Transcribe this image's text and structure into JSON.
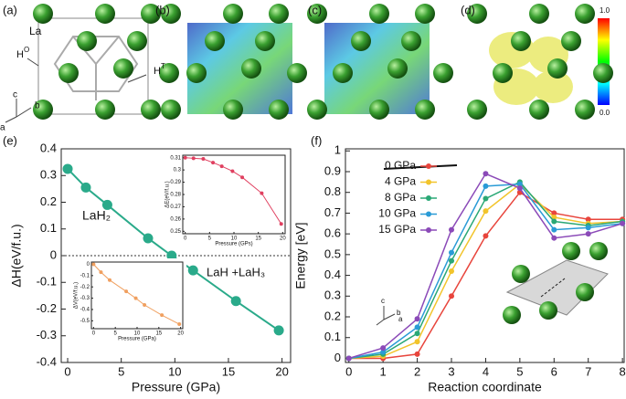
{
  "figure": {
    "panel_labels": [
      "(a)",
      "(b)",
      "(c)",
      "(d)",
      "(e)",
      "(f)"
    ],
    "structure_labels": {
      "la": "La",
      "ho": "H",
      "ho_sup": "O",
      "ht": "H",
      "ht_sup": "T",
      "axis_a": "a",
      "axis_b": "b",
      "axis_c": "c"
    },
    "colorbar": {
      "max": "1.0",
      "min": "0.0"
    },
    "f_axes": {
      "c": "c",
      "b": "b",
      "a": "a"
    }
  },
  "chart_data": [
    {
      "type": "line",
      "xlabel": "Pressure (GPa)",
      "ylabel": "ΔH(eV/f.u.)",
      "x": [
        0,
        1.7,
        3.7,
        7.5,
        9.7,
        11.7,
        15.7,
        19.7
      ],
      "series": [
        {
          "name": "ΔH",
          "color": "#2aaa8a",
          "values": [
            0.325,
            0.255,
            0.19,
            0.065,
            0,
            -0.055,
            -0.17,
            -0.28
          ]
        }
      ],
      "xlim": [
        -0.6,
        20.8
      ],
      "xticks": [
        0,
        5,
        10,
        15,
        20
      ],
      "ylim": [
        -0.4,
        0.4
      ],
      "yticks": [
        -0.4,
        -0.3,
        -0.2,
        -0.1,
        0,
        0.1,
        0.2,
        0.3,
        0.4
      ],
      "annotations": [
        "LaH₂",
        "LaH +LaH₃"
      ]
    },
    {
      "type": "line",
      "xlabel": "Pressure (GPs)",
      "ylabel": "ΔE(eV/f.u.)",
      "x": [
        0,
        1.7,
        3.7,
        5.7,
        7.5,
        9.7,
        11.7,
        15.7,
        19.7
      ],
      "series": [
        {
          "name": "ΔE",
          "color": "#e04060",
          "values": [
            0.31,
            0.3095,
            0.309,
            0.306,
            0.303,
            0.299,
            0.294,
            0.281,
            0.256
          ]
        }
      ],
      "xlim": [
        -0.5,
        20.5
      ],
      "xticks": [
        0,
        5,
        10,
        15,
        20
      ],
      "ylim": [
        0.248,
        0.312
      ],
      "yticks": [
        0.25,
        0.26,
        0.27,
        0.28,
        0.29,
        0.3,
        0.31
      ]
    },
    {
      "type": "line",
      "xlabel": "Pressure (GPa)",
      "ylabel": "ΔV(eV/f.u.)",
      "x": [
        0,
        1.7,
        3.7,
        7.5,
        9.7,
        11.7,
        15.7,
        19.7
      ],
      "series": [
        {
          "name": "ΔV",
          "color": "#f0a060",
          "values": [
            0,
            -0.07,
            -0.14,
            -0.24,
            -0.3,
            -0.36,
            -0.45,
            -0.53
          ]
        }
      ],
      "xlim": [
        -0.5,
        20.5
      ],
      "xticks": [
        0,
        5,
        10,
        15,
        20
      ],
      "ylim": [
        -0.57,
        0.02
      ],
      "yticks": [
        -0.5,
        -0.4,
        -0.3,
        -0.2,
        -0.1,
        0
      ]
    },
    {
      "type": "line",
      "xlabel": "Reaction coordinate",
      "ylabel": "Energy [eV]",
      "x": [
        0,
        1,
        2,
        3,
        4,
        5,
        6,
        7,
        8
      ],
      "series": [
        {
          "name": "0 GPa",
          "color": "#e8453c",
          "values": [
            0,
            0,
            0.02,
            0.3,
            0.59,
            0.8,
            0.7,
            0.67,
            0.67
          ]
        },
        {
          "name": "4 GPa",
          "color": "#f2c42b",
          "values": [
            0,
            0.01,
            0.08,
            0.42,
            0.71,
            0.84,
            0.68,
            0.65,
            0.66
          ]
        },
        {
          "name": "8 GPa",
          "color": "#2aa876",
          "values": [
            0,
            0.02,
            0.12,
            0.47,
            0.77,
            0.85,
            0.66,
            0.64,
            0.66
          ]
        },
        {
          "name": "10 GPa",
          "color": "#2a9bd6",
          "values": [
            0,
            0.03,
            0.15,
            0.51,
            0.83,
            0.84,
            0.62,
            0.63,
            0.65
          ]
        },
        {
          "name": "15 GPa",
          "color": "#8b4ab8",
          "values": [
            0,
            0.05,
            0.19,
            0.62,
            0.89,
            0.82,
            0.58,
            0.6,
            0.65
          ]
        }
      ],
      "xlim": [
        -0.1,
        8.05
      ],
      "xticks": [
        0,
        1,
        2,
        3,
        4,
        5,
        6,
        7,
        8
      ],
      "ylim": [
        -0.02,
        1.01
      ],
      "yticks": [
        0,
        0.1,
        0.2,
        0.3,
        0.4,
        0.5,
        0.6,
        0.7,
        0.8,
        0.9,
        1
      ],
      "legend": "upper left"
    }
  ]
}
